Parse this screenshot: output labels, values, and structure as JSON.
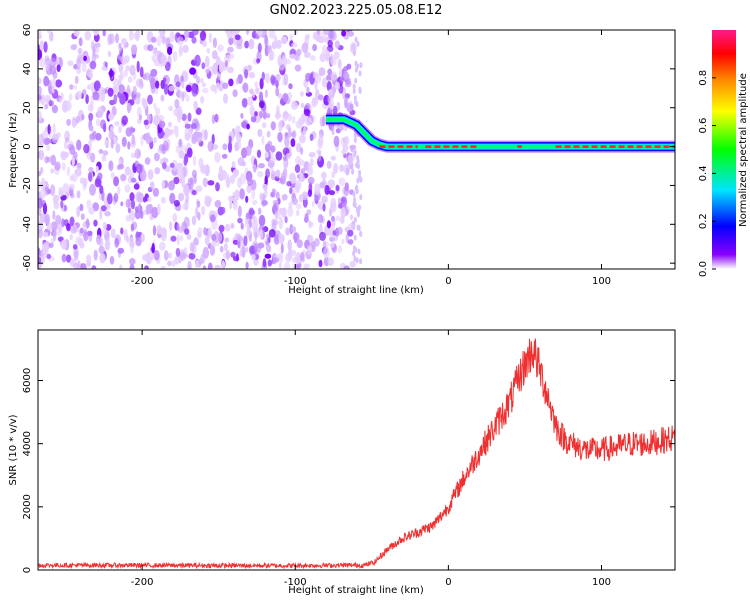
{
  "chart_data": [
    {
      "type": "heatmap",
      "title": "GN02.2023.225.05.08.E12",
      "xlabel": "Height of straight line (km)",
      "ylabel": "Frequency (Hz)",
      "xlim": [
        -268,
        148
      ],
      "ylim": [
        -63,
        60
      ],
      "x_ticks": [
        -200,
        -100,
        0,
        100
      ],
      "y_ticks": [
        -60,
        -40,
        -20,
        0,
        20,
        40,
        60
      ],
      "colorbar": {
        "label": "Normalized spectral amplitude",
        "range": [
          0,
          1
        ],
        "ticks": [
          "0.0",
          "0.2",
          "0.4",
          "0.6",
          "0.8"
        ],
        "colors": [
          "#ffffff",
          "#8a00ff",
          "#0000ff",
          "#00e5ff",
          "#00ff00",
          "#ffff00",
          "#ff8000",
          "#ff0000",
          "#ff1a8c"
        ]
      },
      "noise_region_x": [
        -268,
        -62
      ],
      "signal_track": [
        {
          "x": -80,
          "y": 14
        },
        {
          "x": -68,
          "y": 14
        },
        {
          "x": -60,
          "y": 11
        },
        {
          "x": -55,
          "y": 7
        },
        {
          "x": -50,
          "y": 3
        },
        {
          "x": -45,
          "y": 1
        },
        {
          "x": -40,
          "y": 0
        },
        {
          "x": -20,
          "y": 0
        },
        {
          "x": 0,
          "y": 0
        },
        {
          "x": 50,
          "y": 0
        },
        {
          "x": 100,
          "y": 0
        },
        {
          "x": 148,
          "y": 0
        }
      ]
    },
    {
      "type": "line",
      "title": "",
      "xlabel": "Height of straight line (km)",
      "ylabel": "SNR (10 * v/v)",
      "xlim": [
        -268,
        148
      ],
      "ylim": [
        0,
        7600
      ],
      "x_ticks": [
        -200,
        -100,
        0,
        100
      ],
      "y_ticks": [
        0,
        2000,
        4000,
        6000
      ],
      "series": [
        {
          "color": "#f03030",
          "points": [
            [
              -268,
              150
            ],
            [
              -200,
              150
            ],
            [
              -150,
              140
            ],
            [
              -100,
              140
            ],
            [
              -70,
              150
            ],
            [
              -55,
              150
            ],
            [
              -48,
              250
            ],
            [
              -40,
              650
            ],
            [
              -30,
              1000
            ],
            [
              -20,
              1200
            ],
            [
              -10,
              1400
            ],
            [
              0,
              2000
            ],
            [
              10,
              2900
            ],
            [
              20,
              3700
            ],
            [
              30,
              4500
            ],
            [
              40,
              5300
            ],
            [
              48,
              6300
            ],
            [
              55,
              7000
            ],
            [
              60,
              6300
            ],
            [
              65,
              5500
            ],
            [
              70,
              4600
            ],
            [
              75,
              4200
            ],
            [
              80,
              4000
            ],
            [
              90,
              3800
            ],
            [
              100,
              3800
            ],
            [
              110,
              3900
            ],
            [
              120,
              4000
            ],
            [
              130,
              4000
            ],
            [
              140,
              4100
            ],
            [
              148,
              4200
            ]
          ]
        }
      ]
    }
  ]
}
